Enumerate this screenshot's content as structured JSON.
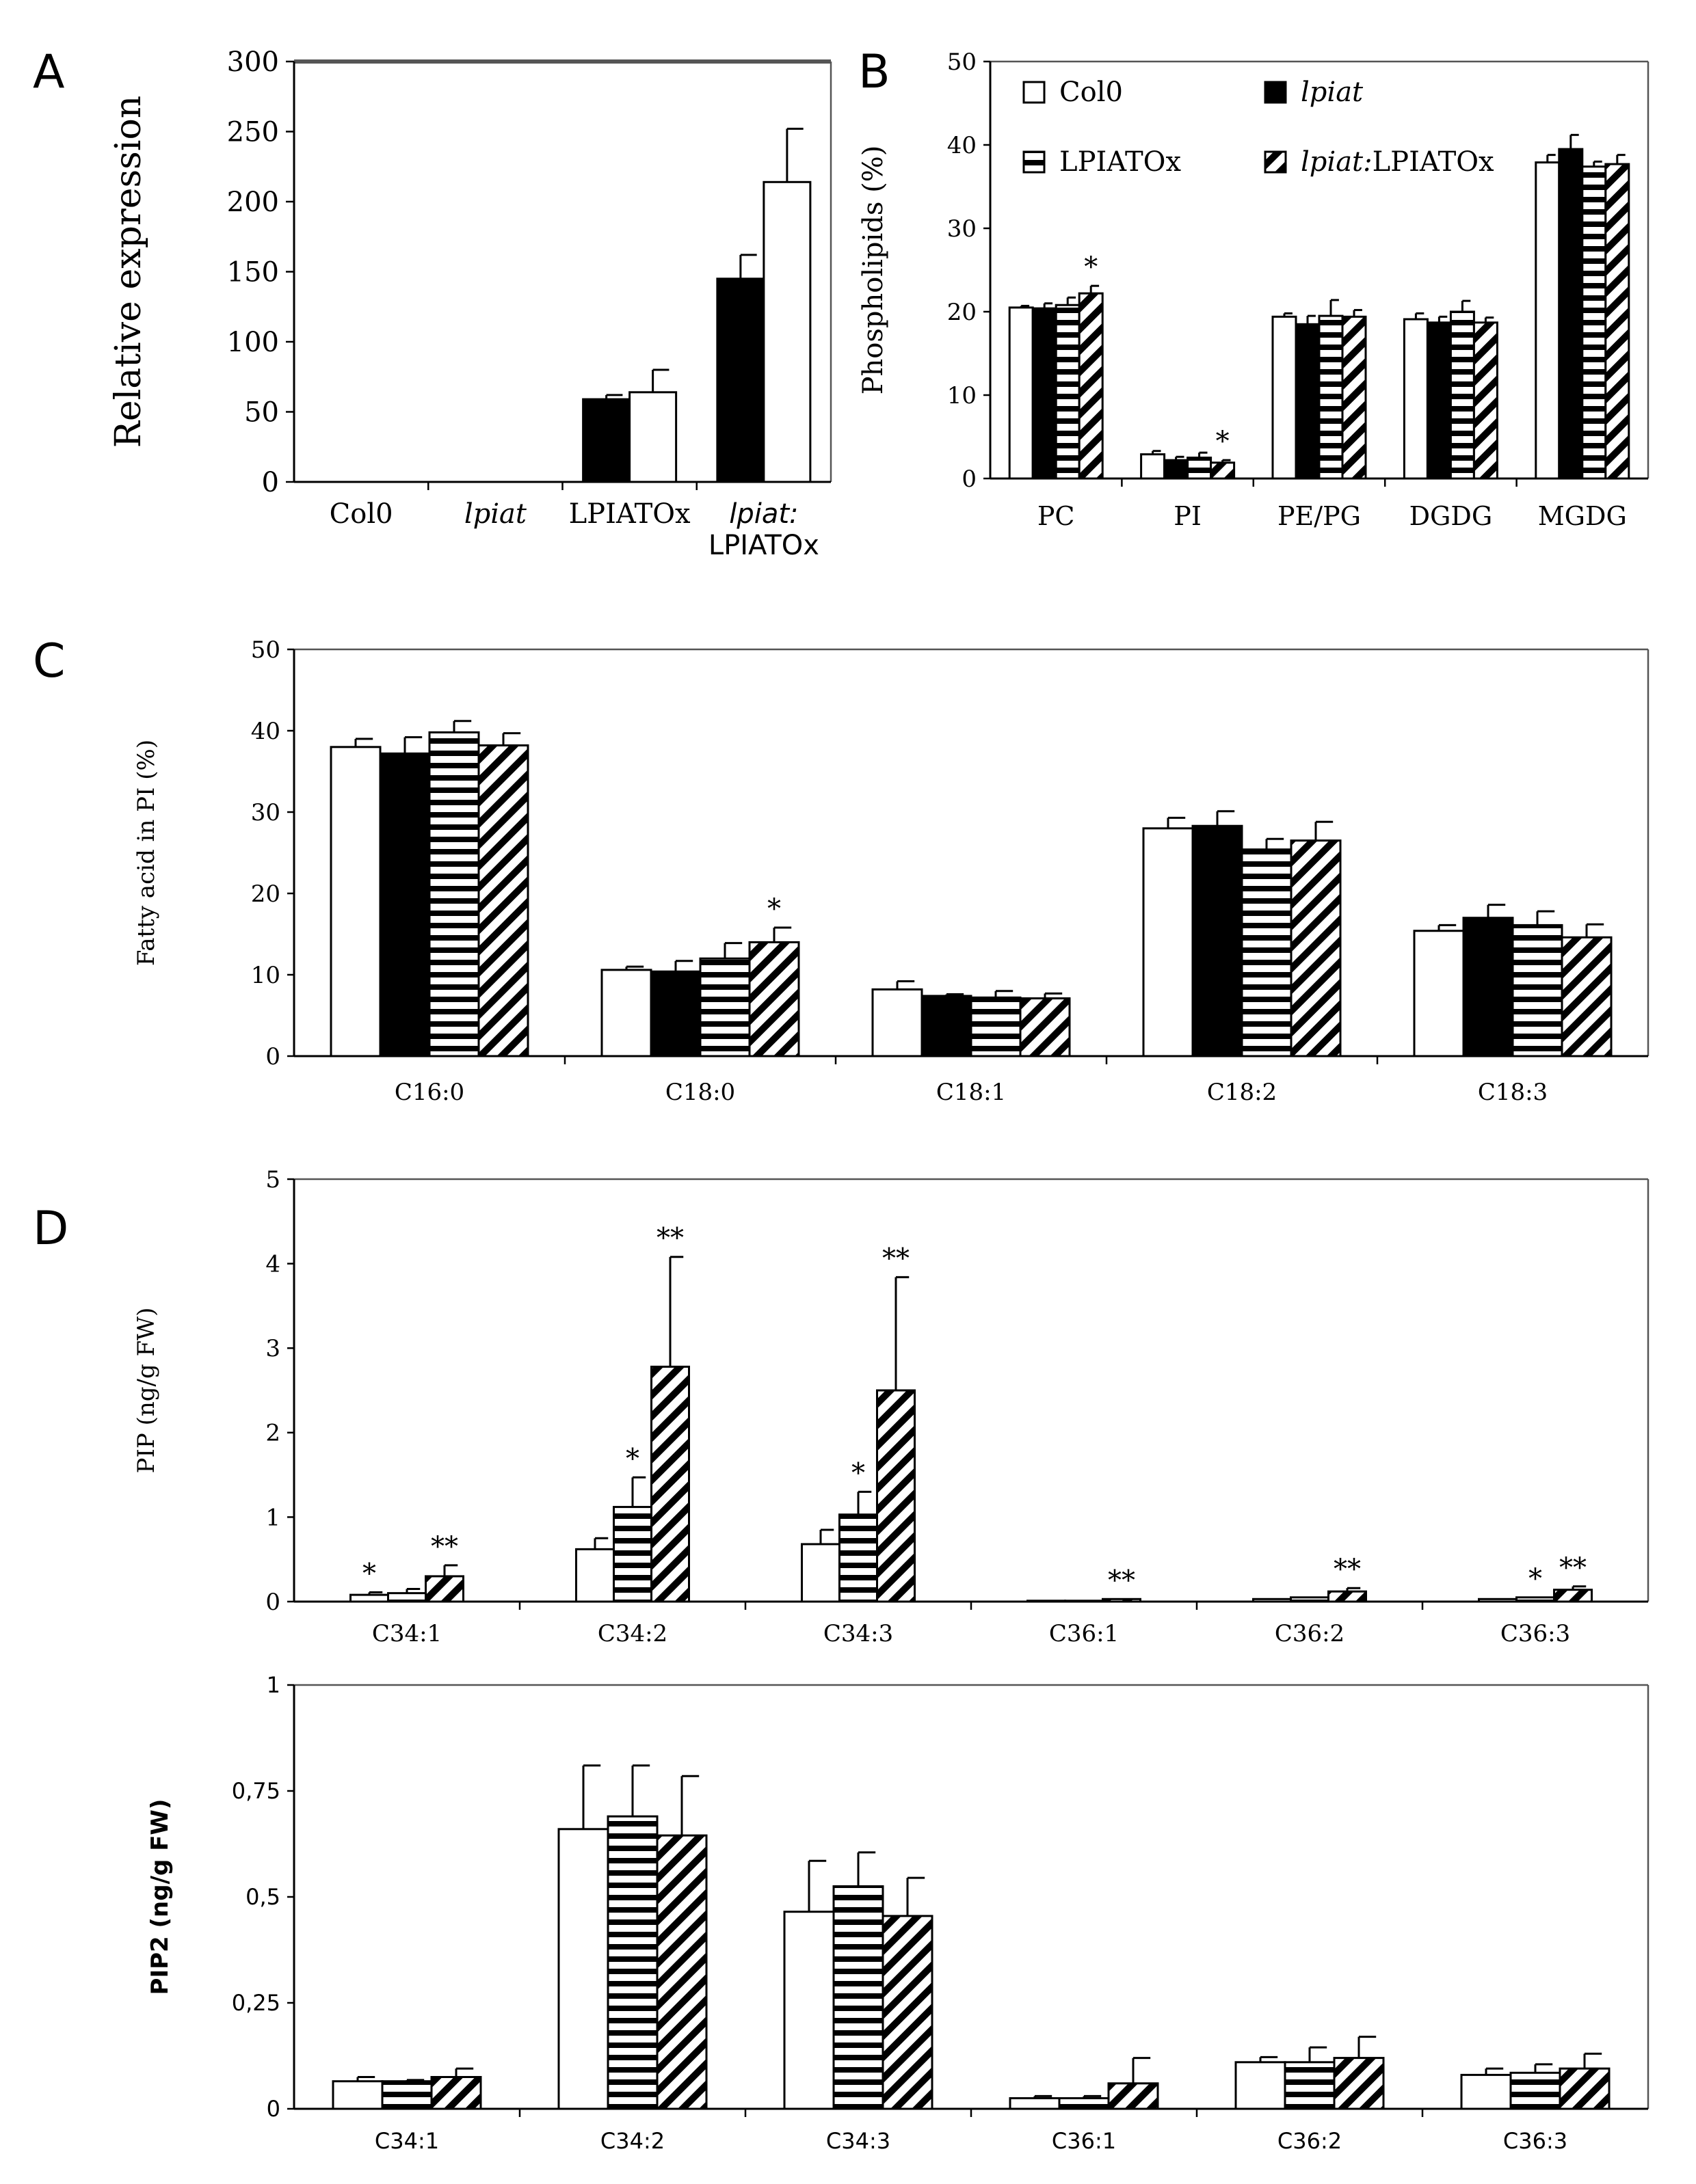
{
  "panel_letters": [
    "A",
    "B",
    "C",
    "D"
  ],
  "chart_data": [
    {
      "id": "A",
      "type": "bar",
      "categories": [
        "Col0",
        "lpiat",
        "LPIATOx",
        "lpiat:\nLPIATOx"
      ],
      "series": [
        {
          "values": [
            0,
            0,
            59,
            145
          ],
          "errors": [
            0,
            0,
            3,
            17
          ],
          "fill": "black"
        },
        {
          "values": [
            0,
            0,
            64,
            214
          ],
          "errors": [
            0,
            0,
            16,
            38
          ],
          "fill": "white"
        }
      ],
      "xlabel": "",
      "ylabel": "Relative expression",
      "ylim": [
        0,
        300
      ],
      "yticks": [
        "0",
        "50",
        "100",
        "150",
        "200",
        "250",
        "300"
      ],
      "grid": false
    },
    {
      "id": "B",
      "type": "bar",
      "categories": [
        "PC",
        "PI",
        "PE/PG",
        "DGDG",
        "MGDG"
      ],
      "series": [
        {
          "name": "Col0",
          "fill": "white",
          "values": [
            20.5,
            2.9,
            19.4,
            19.1,
            37.9
          ],
          "errors": [
            0.2,
            0.4,
            0.4,
            0.7,
            0.9
          ]
        },
        {
          "name": "lpiat",
          "fill": "black",
          "values": [
            20.4,
            2.2,
            18.5,
            18.7,
            39.5
          ],
          "errors": [
            0.6,
            0.4,
            1.0,
            0.7,
            1.7
          ]
        },
        {
          "name": "LPIATOx",
          "fill": "hstripe",
          "values": [
            20.8,
            2.5,
            19.5,
            20.0,
            37.4
          ],
          "errors": [
            0.9,
            0.6,
            1.9,
            1.3,
            0.6
          ]
        },
        {
          "name": "lpiat:LPIATOx",
          "fill": "diag",
          "values": [
            22.2,
            1.9,
            19.4,
            18.7,
            37.7
          ],
          "errors": [
            0.9,
            0.3,
            0.8,
            0.6,
            1.1
          ]
        }
      ],
      "annotations": [
        {
          "category": 0,
          "series": 3,
          "text": "*"
        },
        {
          "category": 1,
          "series": 3,
          "text": "*"
        }
      ],
      "xlabel": "",
      "ylabel": "Phospholipids (%)",
      "ylim": [
        0,
        50
      ],
      "yticks": [
        "0",
        "10",
        "20",
        "30",
        "40",
        "50"
      ],
      "legend": "top",
      "grid": false
    },
    {
      "id": "C",
      "type": "bar",
      "categories": [
        "C16:0",
        "C18:0",
        "C18:1",
        "C18:2",
        "C18:3"
      ],
      "series": [
        {
          "name": "Col0",
          "fill": "white",
          "values": [
            38.0,
            10.6,
            8.2,
            28.0,
            15.4
          ],
          "errors": [
            1.0,
            0.4,
            1.0,
            1.3,
            0.7
          ]
        },
        {
          "name": "lpiat",
          "fill": "black",
          "values": [
            37.2,
            10.4,
            7.4,
            28.3,
            17.0
          ],
          "errors": [
            2.0,
            1.3,
            0.2,
            1.8,
            1.6
          ]
        },
        {
          "name": "LPIATOx",
          "fill": "hstripe",
          "values": [
            39.8,
            12.0,
            7.2,
            25.4,
            16.1
          ],
          "errors": [
            1.4,
            1.9,
            0.8,
            1.3,
            1.7
          ]
        },
        {
          "name": "lpiat:LPIATOx",
          "fill": "diag",
          "values": [
            38.2,
            14.0,
            7.1,
            26.5,
            14.6
          ],
          "errors": [
            1.5,
            1.8,
            0.6,
            2.3,
            1.6
          ]
        }
      ],
      "annotations": [
        {
          "category": 1,
          "series": 3,
          "text": "*"
        }
      ],
      "xlabel": "",
      "ylabel": "Fatty acid in PI  (%)",
      "ylim": [
        0,
        50
      ],
      "yticks": [
        "0",
        "10",
        "20",
        "30",
        "40",
        "50"
      ],
      "grid": false
    },
    {
      "id": "D-PIP",
      "type": "bar",
      "categories": [
        "C34:1",
        "C34:2",
        "C34:3",
        "C36:1",
        "C36:2",
        "C36:3"
      ],
      "series": [
        {
          "name": "Col0",
          "fill": "white",
          "values": [
            0.08,
            0.62,
            0.68,
            0.01,
            0.03,
            0.03
          ],
          "errors": [
            0.03,
            0.13,
            0.17,
            0.0,
            0.0,
            0.0
          ]
        },
        {
          "name": "LPIATOx",
          "fill": "hstripe",
          "values": [
            0.1,
            1.12,
            1.03,
            0.01,
            0.05,
            0.05
          ],
          "errors": [
            0.05,
            0.35,
            0.27,
            0.0,
            0.0,
            0.0
          ]
        },
        {
          "name": "lpiat:LPIATOx",
          "fill": "diag",
          "values": [
            0.3,
            2.78,
            2.5,
            0.03,
            0.12,
            0.14
          ],
          "errors": [
            0.13,
            1.3,
            1.34,
            0.0,
            0.04,
            0.04
          ]
        }
      ],
      "annotations": [
        {
          "category": 0,
          "series": 0,
          "text": "*"
        },
        {
          "category": 0,
          "series": 2,
          "text": "**"
        },
        {
          "category": 1,
          "series": 1,
          "text": "*"
        },
        {
          "category": 1,
          "series": 2,
          "text": "**"
        },
        {
          "category": 2,
          "series": 1,
          "text": "*"
        },
        {
          "category": 2,
          "series": 2,
          "text": "**"
        },
        {
          "category": 3,
          "series": 2,
          "text": "**"
        },
        {
          "category": 4,
          "series": 2,
          "text": "**"
        },
        {
          "category": 5,
          "series": 1,
          "text": "*"
        },
        {
          "category": 5,
          "series": 2,
          "text": "**"
        }
      ],
      "xlabel": "",
      "ylabel": "PIP (ng/g FW)",
      "ylim": [
        0,
        5
      ],
      "yticks": [
        "0",
        "1",
        "2",
        "3",
        "4",
        "5"
      ],
      "grid": false
    },
    {
      "id": "D-PIP2",
      "type": "bar",
      "categories": [
        "C34:1",
        "C34:2",
        "C34:3",
        "C36:1",
        "C36:2",
        "C36:3"
      ],
      "series": [
        {
          "name": "Col0",
          "fill": "white",
          "values": [
            0.065,
            0.66,
            0.465,
            0.025,
            0.11,
            0.08
          ],
          "errors": [
            0.01,
            0.15,
            0.12,
            0.005,
            0.012,
            0.015
          ]
        },
        {
          "name": "LPIATOx",
          "fill": "hstripe",
          "values": [
            0.065,
            0.69,
            0.525,
            0.025,
            0.11,
            0.085
          ],
          "errors": [
            0.003,
            0.12,
            0.08,
            0.005,
            0.035,
            0.02
          ]
        },
        {
          "name": "lpiat:LPIATOx",
          "fill": "diag",
          "values": [
            0.075,
            0.645,
            0.455,
            0.06,
            0.12,
            0.095
          ],
          "errors": [
            0.02,
            0.14,
            0.09,
            0.06,
            0.05,
            0.035
          ]
        }
      ],
      "xlabel": "",
      "ylabel": "PIP2 (ng/g FW)",
      "ylim": [
        0,
        1
      ],
      "yticks": [
        "0",
        "0,25",
        "0,5",
        "0,75",
        "1"
      ],
      "grid": false
    }
  ]
}
